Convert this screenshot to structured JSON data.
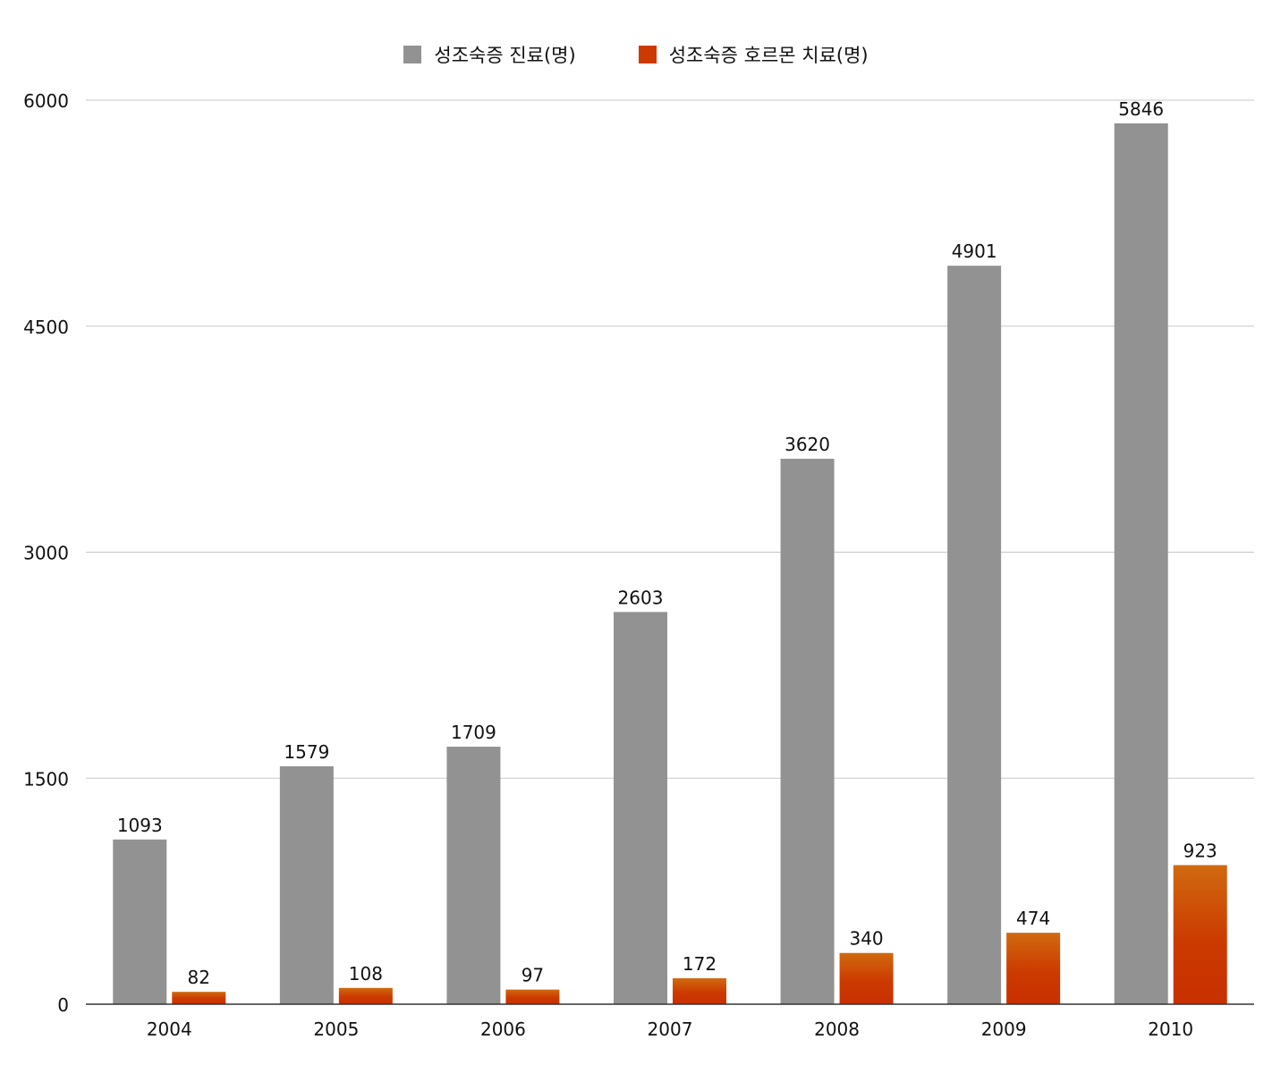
{
  "chart_data": {
    "type": "bar",
    "title": "",
    "xlabel": "",
    "ylabel": "",
    "categories": [
      "2004",
      "2005",
      "2006",
      "2007",
      "2008",
      "2009",
      "2010"
    ],
    "series": [
      {
        "name": "성조숙증 진료(명)",
        "values": [
          1093,
          1579,
          1709,
          2603,
          3620,
          4901,
          5846
        ],
        "color": "#919291"
      },
      {
        "name": "성조숙증 호르몬 치료(명)",
        "values": [
          82,
          108,
          97,
          172,
          340,
          474,
          923
        ],
        "color": "#cc3a00"
      }
    ],
    "ylim": [
      0,
      6000
    ],
    "yticks": [
      "0",
      "1500",
      "3000",
      "4500",
      "6000"
    ],
    "ytick_values": [
      0,
      1500,
      3000,
      4500,
      6000
    ],
    "grid": true,
    "legend": "top-center",
    "data_labels": true
  }
}
